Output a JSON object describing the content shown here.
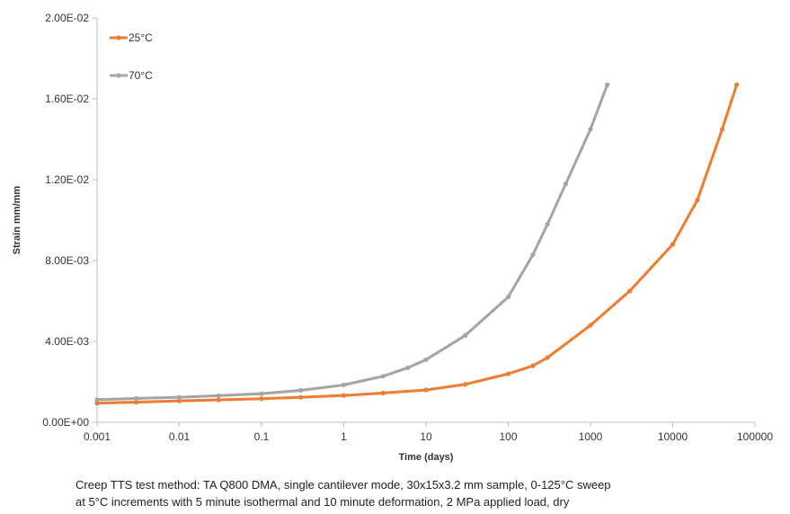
{
  "chart_data": {
    "type": "line",
    "title": "",
    "xlabel": "Time (days)",
    "ylabel": "Strain mm/mm",
    "x_scale": "log",
    "xlim": [
      0.001,
      100000
    ],
    "ylim": [
      0,
      0.02
    ],
    "x_ticks": [
      "0.001",
      "0.01",
      "0.1",
      "1",
      "10",
      "100",
      "1000",
      "10000",
      "100000"
    ],
    "y_ticks": [
      "0.00E+00",
      "4.00E-03",
      "8.00E-03",
      "1.20E-02",
      "1.60E-02",
      "2.00E-02"
    ],
    "grid": false,
    "legend_position": "top-left",
    "series": [
      {
        "name": "25°C",
        "color": "#ED7D31",
        "x": [
          0.001,
          0.003,
          0.01,
          0.03,
          0.1,
          0.3,
          1,
          3,
          10,
          30,
          100,
          200,
          300,
          1000,
          3000,
          10000,
          20000,
          40000,
          60000
        ],
        "y": [
          0.00095,
          0.001,
          0.00106,
          0.00111,
          0.00117,
          0.00124,
          0.00133,
          0.00145,
          0.0016,
          0.00188,
          0.0024,
          0.0028,
          0.0032,
          0.0048,
          0.0065,
          0.0088,
          0.011,
          0.0145,
          0.0167
        ]
      },
      {
        "name": "70°C",
        "color": "#A5A5A5",
        "x": [
          0.001,
          0.003,
          0.01,
          0.03,
          0.1,
          0.3,
          1,
          3,
          6,
          10,
          30,
          100,
          200,
          300,
          500,
          1000,
          1600
        ],
        "y": [
          0.00112,
          0.00118,
          0.00124,
          0.00132,
          0.00142,
          0.00158,
          0.00185,
          0.00228,
          0.0027,
          0.0031,
          0.0043,
          0.0062,
          0.0083,
          0.0098,
          0.0118,
          0.0145,
          0.0167
        ]
      }
    ]
  },
  "caption": {
    "line1": "Creep TTS test method: TA Q800 DMA, single cantilever mode, 30x15x3.2 mm sample, 0-125°C sweep",
    "line2": "at 5°C increments with 5 minute isothermal and 10 minute deformation, 2 MPa applied load, dry"
  }
}
